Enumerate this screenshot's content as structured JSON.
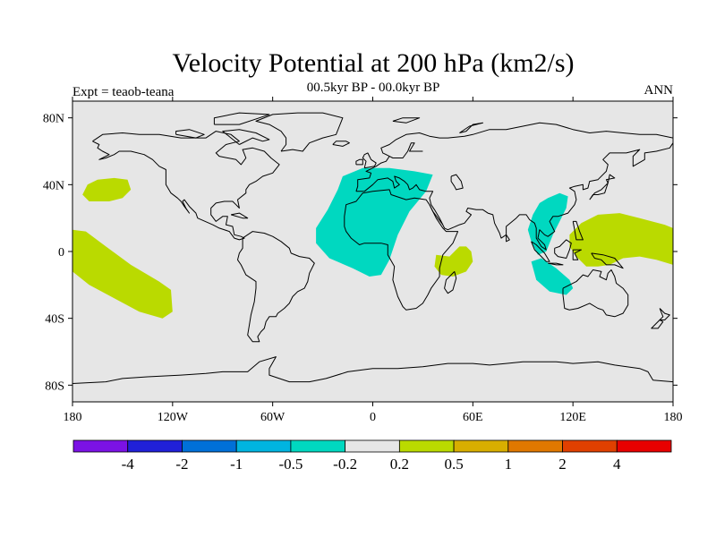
{
  "map": {
    "title": "Velocity Potential at 200 hPa (km2/s)",
    "subtitle": "00.5kyr BP - 00.0kyr BP",
    "left_label": "Expt = teaob-teana",
    "right_label": "ANN",
    "projection": "cylindrical-equidistant",
    "lon_range": [
      -180,
      180
    ],
    "lat_range": [
      -90,
      90
    ],
    "ocean_color": "#e6e6e6",
    "coast_color": "#000000",
    "lon_ticks": [
      {
        "value": -180,
        "label": "180"
      },
      {
        "value": -120,
        "label": "120W"
      },
      {
        "value": -60,
        "label": "60W"
      },
      {
        "value": 0,
        "label": "0"
      },
      {
        "value": 60,
        "label": "60E"
      },
      {
        "value": 120,
        "label": "120E"
      },
      {
        "value": 180,
        "label": "180"
      }
    ],
    "lat_ticks": [
      {
        "value": 80,
        "label": "80N"
      },
      {
        "value": 40,
        "label": "40N"
      },
      {
        "value": 0,
        "label": "0"
      },
      {
        "value": -40,
        "label": "40S"
      },
      {
        "value": -80,
        "label": "80S"
      }
    ],
    "regions": [
      {
        "name": "north-pacific-positive",
        "class": "0.2 to 0.5",
        "color": "#bada00",
        "outline": [
          [
            -171,
            40
          ],
          [
            -165,
            43
          ],
          [
            -155,
            44
          ],
          [
            -147,
            43
          ],
          [
            -145,
            37
          ],
          [
            -150,
            32
          ],
          [
            -158,
            30
          ],
          [
            -170,
            30
          ],
          [
            -174,
            34
          ]
        ]
      },
      {
        "name": "south-pacific-positive",
        "class": "0.2 to 0.5",
        "color": "#bada00",
        "outline": [
          [
            -180,
            13
          ],
          [
            -172,
            12
          ],
          [
            -160,
            3
          ],
          [
            -145,
            -8
          ],
          [
            -128,
            -18
          ],
          [
            -121,
            -23
          ],
          [
            -120,
            -36
          ],
          [
            -126,
            -40
          ],
          [
            -140,
            -36
          ],
          [
            -155,
            -28
          ],
          [
            -170,
            -20
          ],
          [
            -180,
            -12
          ]
        ]
      },
      {
        "name": "atlantic-africa-negative",
        "class": "-0.5 to -0.2",
        "color": "#00d8c0",
        "outline": [
          [
            -18,
            45
          ],
          [
            -6,
            50
          ],
          [
            10,
            50
          ],
          [
            25,
            48
          ],
          [
            36,
            46
          ],
          [
            32,
            36
          ],
          [
            22,
            24
          ],
          [
            15,
            10
          ],
          [
            10,
            -5
          ],
          [
            5,
            -14
          ],
          [
            -2,
            -15
          ],
          [
            -12,
            -10
          ],
          [
            -26,
            -4
          ],
          [
            -34,
            5
          ],
          [
            -34,
            14
          ],
          [
            -27,
            25
          ],
          [
            -21,
            37
          ]
        ]
      },
      {
        "name": "indian-ocean-positive",
        "class": "0.2 to 0.5",
        "color": "#bada00",
        "outline": [
          [
            38,
            -2
          ],
          [
            46,
            -3
          ],
          [
            52,
            3
          ],
          [
            56,
            3
          ],
          [
            59,
            0
          ],
          [
            60,
            -6
          ],
          [
            56,
            -12
          ],
          [
            48,
            -15
          ],
          [
            41,
            -14
          ],
          [
            37,
            -9
          ]
        ]
      },
      {
        "name": "bay-of-bengal-negative",
        "class": "-0.5 to -0.2",
        "color": "#00d8c0",
        "outline": [
          [
            105,
            32
          ],
          [
            112,
            35
          ],
          [
            117,
            33
          ],
          [
            116,
            26
          ],
          [
            112,
            18
          ],
          [
            108,
            10
          ],
          [
            104,
            0
          ],
          [
            99,
            -2
          ],
          [
            95,
            6
          ],
          [
            93,
            13
          ],
          [
            96,
            22
          ],
          [
            100,
            29
          ]
        ]
      },
      {
        "name": "sumatra-negative",
        "class": "-0.5 to -0.2",
        "color": "#00d8c0",
        "outline": [
          [
            95,
            -6
          ],
          [
            101,
            -4
          ],
          [
            110,
            -10
          ],
          [
            118,
            -17
          ],
          [
            120,
            -22
          ],
          [
            116,
            -26
          ],
          [
            106,
            -24
          ],
          [
            98,
            -17
          ]
        ]
      },
      {
        "name": "west-pacific-positive",
        "class": "0.2 to 0.5",
        "color": "#bada00",
        "outline": [
          [
            118,
            10
          ],
          [
            125,
            17
          ],
          [
            135,
            22
          ],
          [
            148,
            23
          ],
          [
            160,
            20
          ],
          [
            175,
            16
          ],
          [
            180,
            14
          ],
          [
            180,
            -8
          ],
          [
            170,
            -5
          ],
          [
            160,
            -3
          ],
          [
            150,
            -4
          ],
          [
            142,
            -8
          ],
          [
            135,
            -9
          ],
          [
            128,
            -9
          ],
          [
            122,
            -3
          ],
          [
            118,
            3
          ]
        ]
      }
    ]
  },
  "colorbar": {
    "colors": [
      "#7b12e5",
      "#2020d8",
      "#0070d8",
      "#00b4e0",
      "#00d8c0",
      "#e6e6e6",
      "#bada00",
      "#d8ae00",
      "#e07800",
      "#e04000",
      "#e80000"
    ],
    "labels": [
      "-4",
      "-2",
      "-1",
      "-0.5",
      "-0.2",
      "0.2",
      "0.5",
      "1",
      "2",
      "4"
    ]
  }
}
